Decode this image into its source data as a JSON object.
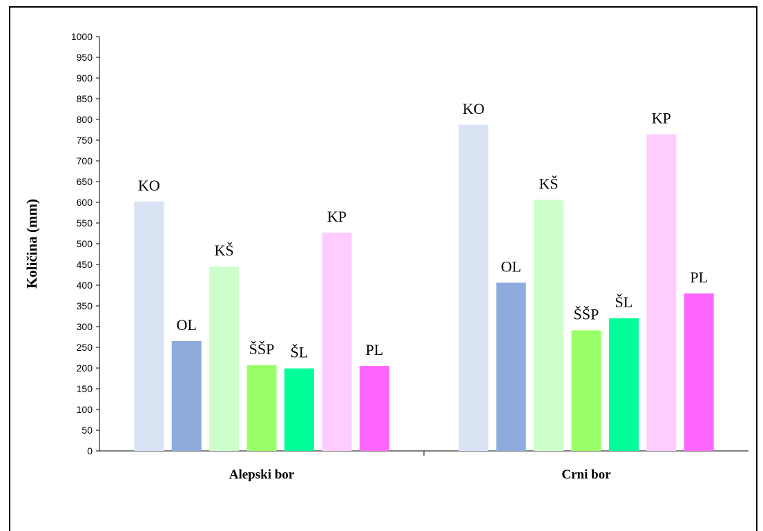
{
  "chart_data": {
    "type": "bar",
    "ylabel": "Količina (mm)",
    "ylim": [
      0,
      1000
    ],
    "ytick_step": 50,
    "grid": false,
    "legend": "none",
    "groups": [
      {
        "name": "Alepski bor",
        "bars": [
          {
            "label": "KO",
            "value": 602,
            "color": "#dae3f3"
          },
          {
            "label": "OL",
            "value": 265,
            "color": "#8faadc"
          },
          {
            "label": "KŠ",
            "value": 445,
            "color": "#ccffcc"
          },
          {
            "label": "ŠŠP",
            "value": 207,
            "color": "#99ff66"
          },
          {
            "label": "ŠL",
            "value": 199,
            "color": "#00ff99"
          },
          {
            "label": "KP",
            "value": 527,
            "color": "#ffccff"
          },
          {
            "label": "PL",
            "value": 205,
            "color": "#ff66ff"
          }
        ]
      },
      {
        "name": "Crni bor",
        "bars": [
          {
            "label": "KO",
            "value": 787,
            "color": "#dae3f3"
          },
          {
            "label": "OL",
            "value": 406,
            "color": "#8faadc"
          },
          {
            "label": "KŠ",
            "value": 606,
            "color": "#ccffcc"
          },
          {
            "label": "ŠŠP",
            "value": 291,
            "color": "#99ff66"
          },
          {
            "label": "ŠL",
            "value": 320,
            "color": "#00ff99"
          },
          {
            "label": "KP",
            "value": 764,
            "color": "#ffccff"
          },
          {
            "label": "PL",
            "value": 380,
            "color": "#ff66ff"
          }
        ]
      }
    ]
  }
}
